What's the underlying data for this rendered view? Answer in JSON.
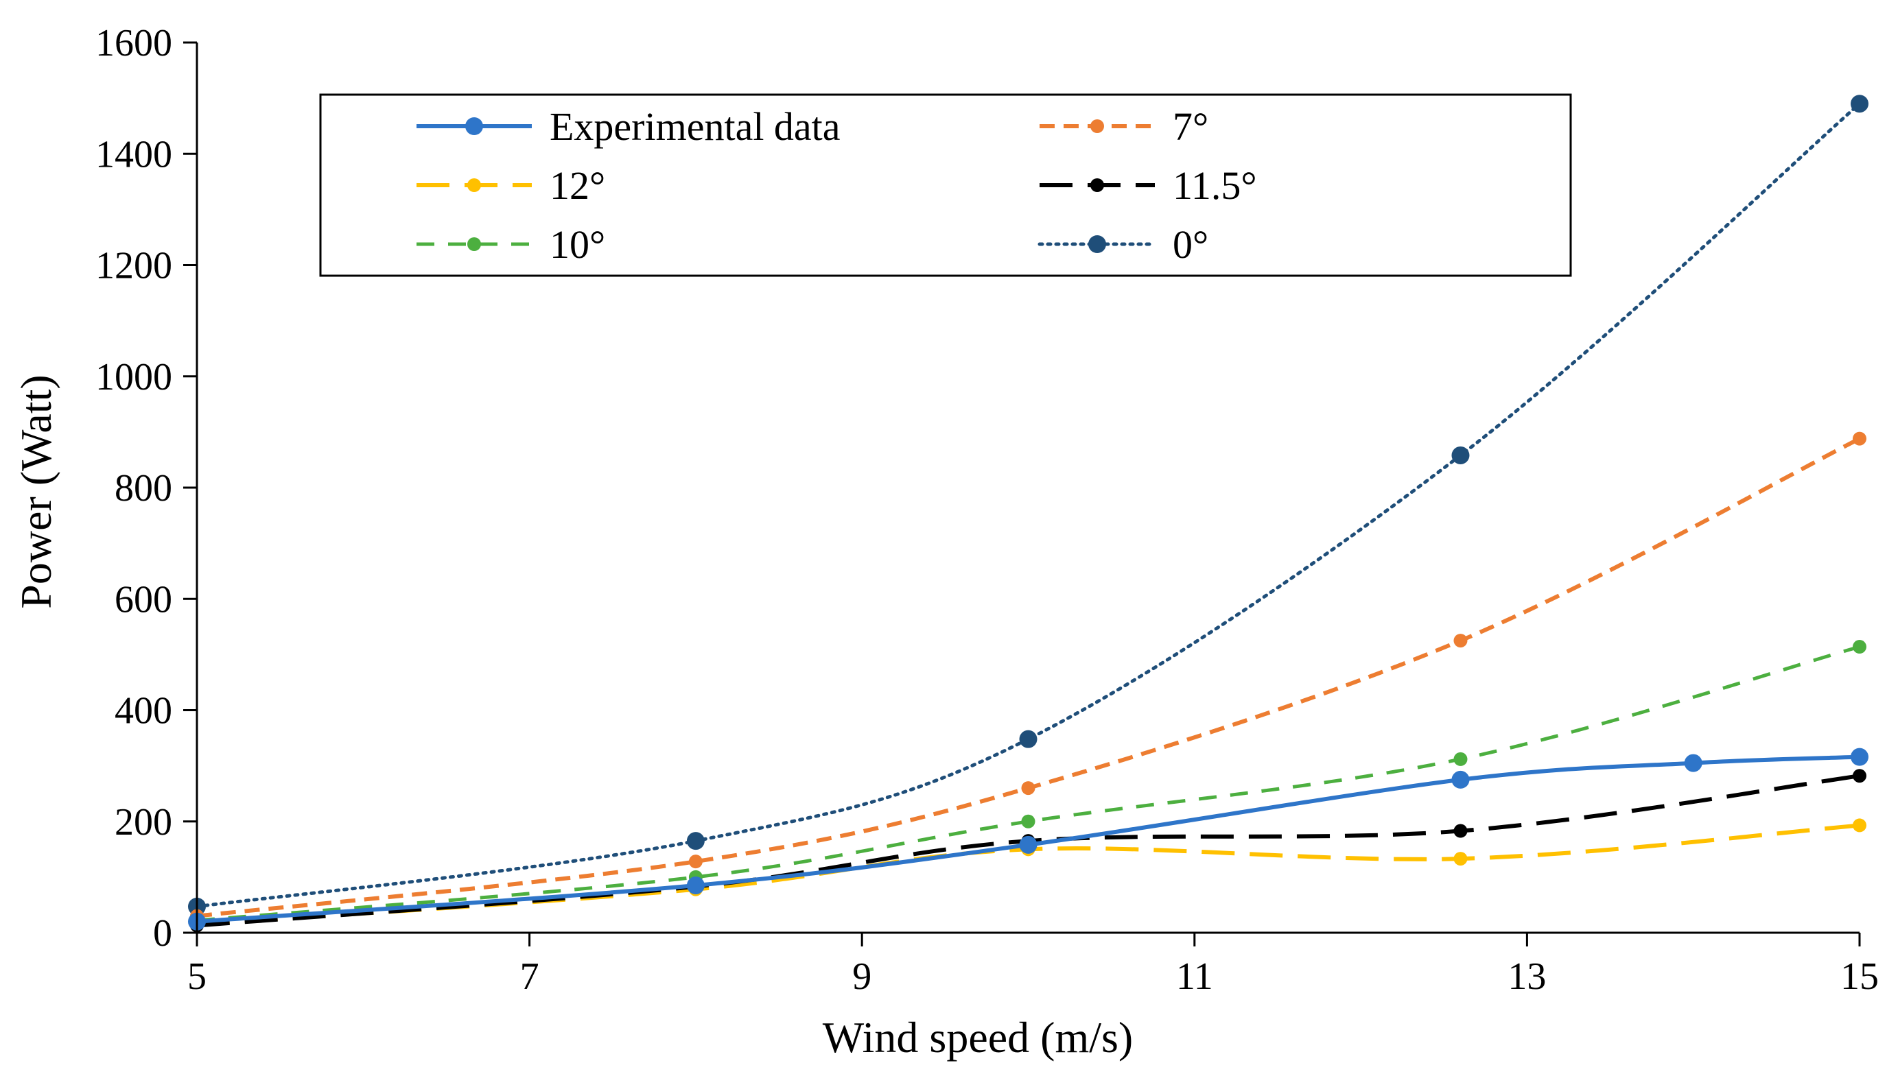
{
  "chart_data": {
    "type": "line",
    "title": "",
    "xlabel": "Wind speed (m/s)",
    "ylabel": "Power (Watt)",
    "xlim": [
      5,
      15
    ],
    "ylim": [
      0,
      1600
    ],
    "xticks": [
      "5",
      "7",
      "9",
      "11",
      "13",
      "15"
    ],
    "yticks": [
      "0",
      "200",
      "400",
      "600",
      "800",
      "1000",
      "1200",
      "1400",
      "1600"
    ],
    "grid": false,
    "legend_position": "top",
    "series": [
      {
        "name": "Experimental data",
        "color": "#2E75C9",
        "dash": "solid",
        "marker": "circle-large",
        "x": [
          5,
          8,
          10,
          12.6,
          14,
          15
        ],
        "values": [
          20,
          85,
          158,
          275,
          305,
          316
        ]
      },
      {
        "name": "7°",
        "color": "#ED7D31",
        "dash": "short-dash",
        "marker": "circle-small",
        "x": [
          5,
          8,
          10,
          12.6,
          15
        ],
        "values": [
          30,
          128,
          260,
          525,
          888
        ]
      },
      {
        "name": "12°",
        "color": "#FFC000",
        "dash": "long-dash",
        "marker": "circle-small",
        "x": [
          5,
          8,
          10,
          12.6,
          15
        ],
        "values": [
          15,
          78,
          150,
          133,
          193
        ]
      },
      {
        "name": "11.5°",
        "color": "#000000",
        "dash": "long-dash",
        "marker": "circle-small",
        "x": [
          5,
          8,
          10,
          12.6,
          15
        ],
        "values": [
          13,
          83,
          165,
          183,
          282
        ]
      },
      {
        "name": "10°",
        "color": "#4CAF3F",
        "dash": "medium-dash",
        "marker": "circle-small",
        "x": [
          5,
          8,
          10,
          12.6,
          15
        ],
        "values": [
          22,
          100,
          200,
          312,
          514
        ]
      },
      {
        "name": "0°",
        "color": "#1F4E79",
        "dash": "dotted",
        "marker": "circle-large",
        "x": [
          5,
          8,
          10,
          12.6,
          15
        ],
        "values": [
          47,
          165,
          348,
          858,
          1490
        ]
      }
    ]
  }
}
